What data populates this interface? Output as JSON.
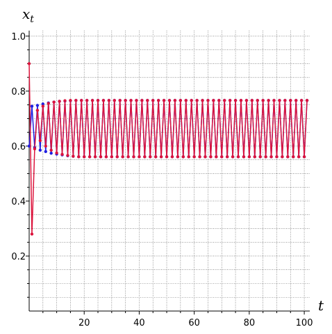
{
  "chart_data": {
    "type": "line",
    "title": "",
    "xlabel": "t",
    "ylabel": "x",
    "ylabel_subscript": "t",
    "xlim": [
      0,
      102
    ],
    "ylim": [
      0,
      1.02
    ],
    "xticks": [
      20,
      40,
      60,
      80,
      100
    ],
    "xtick_labels": [
      "20",
      "40",
      "60",
      "80",
      "100"
    ],
    "yticks": [
      0.2,
      0.4,
      0.6,
      0.8,
      1.0
    ],
    "ytick_labels": [
      "0.2",
      "0.4",
      "0.6",
      "0.8",
      "1.0"
    ],
    "grid": true,
    "t_max": 101,
    "series": [
      {
        "color": "#1f1fe0",
        "start_values": [
          0.6,
          0.745,
          0.595,
          0.748,
          0.585,
          0.753,
          0.58,
          0.757,
          0.574,
          0.76,
          0.571,
          0.763,
          0.568,
          0.764,
          0.565,
          0.765,
          0.563,
          0.766
        ],
        "settled_high": 0.766,
        "settled_low": 0.561
      },
      {
        "color": "#dc143c",
        "start_values": [
          0.9,
          0.28,
          0.59,
          0.73,
          0.62,
          0.745,
          0.6,
          0.755,
          0.585,
          0.76,
          0.575,
          0.763,
          0.57,
          0.765,
          0.566,
          0.766,
          0.563,
          0.766
        ],
        "settled_high": 0.766,
        "settled_low": 0.561
      }
    ]
  }
}
